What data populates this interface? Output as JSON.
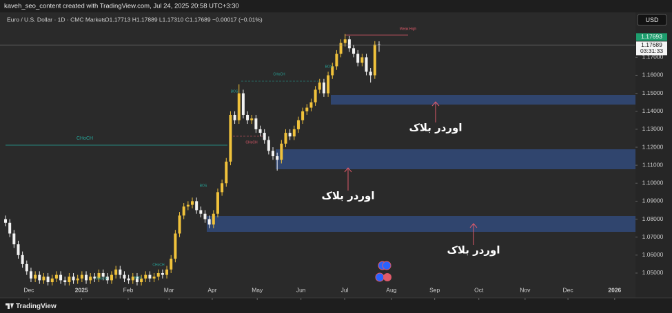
{
  "header": {
    "author_line": "kaveh_seo_content created with TradingView.com, Jul 24, 2025 20:58 UTC+3:30",
    "symbol": "Euro / U.S. Dollar · 1D · CMC Markets",
    "ohlc": "O1.17713 H1.17889 L1.17310 C1.17689 −0.00017 (−0.01%)",
    "currency": "USD",
    "brand": "TradingView"
  },
  "chart_data": {
    "type": "candlestick",
    "open": [
      1.08,
      1.078,
      1.072,
      1.066,
      1.06,
      1.055,
      1.051,
      1.047,
      1.049,
      1.046,
      1.048,
      1.045,
      1.047,
      1.049,
      1.046,
      1.045,
      1.048,
      1.046,
      1.047,
      1.049,
      1.046,
      1.048,
      1.047,
      1.05,
      1.048,
      1.046,
      1.049,
      1.052,
      1.049,
      1.047,
      1.046,
      1.048,
      1.045,
      1.047,
      1.049,
      1.047,
      1.048,
      1.05,
      1.049,
      1.052,
      1.058,
      1.072,
      1.082,
      1.087,
      1.088,
      1.09,
      1.085,
      1.083,
      1.08,
      1.077,
      1.083,
      1.095,
      1.1,
      1.112,
      1.138,
      1.135,
      1.15,
      1.138,
      1.135,
      1.136,
      1.13,
      1.128,
      1.124,
      1.118,
      1.115,
      1.113,
      1.122,
      1.128,
      1.126,
      1.13,
      1.135,
      1.14,
      1.142,
      1.145,
      1.152,
      1.156,
      1.15,
      1.16,
      1.165,
      1.172,
      1.178,
      1.18,
      1.175,
      1.172,
      1.167,
      1.17,
      1.162,
      1.16,
      1.17713
    ],
    "high": [
      1.082,
      1.08,
      1.074,
      1.068,
      1.062,
      1.057,
      1.053,
      1.051,
      1.051,
      1.05,
      1.05,
      1.049,
      1.051,
      1.051,
      1.048,
      1.05,
      1.05,
      1.049,
      1.051,
      1.051,
      1.05,
      1.05,
      1.052,
      1.052,
      1.05,
      1.051,
      1.054,
      1.054,
      1.051,
      1.049,
      1.05,
      1.05,
      1.049,
      1.051,
      1.051,
      1.05,
      1.052,
      1.052,
      1.054,
      1.06,
      1.074,
      1.084,
      1.089,
      1.09,
      1.092,
      1.092,
      1.087,
      1.085,
      1.082,
      1.085,
      1.097,
      1.102,
      1.114,
      1.14,
      1.14,
      1.155,
      1.152,
      1.14,
      1.138,
      1.138,
      1.132,
      1.13,
      1.126,
      1.12,
      1.117,
      1.124,
      1.13,
      1.13,
      1.132,
      1.137,
      1.142,
      1.144,
      1.147,
      1.154,
      1.158,
      1.158,
      1.162,
      1.167,
      1.174,
      1.18,
      1.183,
      1.182,
      1.177,
      1.174,
      1.172,
      1.172,
      1.164,
      1.179,
      1.17889
    ],
    "low": [
      1.076,
      1.07,
      1.064,
      1.058,
      1.053,
      1.049,
      1.045,
      1.045,
      1.044,
      1.044,
      1.043,
      1.043,
      1.045,
      1.044,
      1.043,
      1.043,
      1.044,
      1.044,
      1.045,
      1.044,
      1.044,
      1.045,
      1.045,
      1.046,
      1.044,
      1.044,
      1.047,
      1.047,
      1.045,
      1.044,
      1.044,
      1.043,
      1.043,
      1.045,
      1.045,
      1.045,
      1.046,
      1.047,
      1.047,
      1.05,
      1.056,
      1.07,
      1.08,
      1.085,
      1.086,
      1.083,
      1.081,
      1.078,
      1.075,
      1.075,
      1.081,
      1.093,
      1.098,
      1.11,
      1.133,
      1.133,
      1.136,
      1.133,
      1.133,
      1.128,
      1.126,
      1.122,
      1.116,
      1.113,
      1.107,
      1.111,
      1.12,
      1.124,
      1.124,
      1.128,
      1.133,
      1.138,
      1.14,
      1.143,
      1.15,
      1.148,
      1.148,
      1.158,
      1.163,
      1.17,
      1.176,
      1.173,
      1.17,
      1.165,
      1.165,
      1.16,
      1.156,
      1.158,
      1.1731
    ],
    "close": [
      1.078,
      1.072,
      1.066,
      1.06,
      1.055,
      1.051,
      1.047,
      1.049,
      1.046,
      1.048,
      1.045,
      1.047,
      1.049,
      1.046,
      1.045,
      1.048,
      1.046,
      1.047,
      1.049,
      1.046,
      1.048,
      1.047,
      1.05,
      1.048,
      1.046,
      1.049,
      1.052,
      1.049,
      1.047,
      1.046,
      1.048,
      1.045,
      1.047,
      1.049,
      1.047,
      1.048,
      1.05,
      1.049,
      1.052,
      1.058,
      1.072,
      1.082,
      1.087,
      1.088,
      1.09,
      1.085,
      1.083,
      1.08,
      1.077,
      1.083,
      1.095,
      1.1,
      1.112,
      1.138,
      1.135,
      1.15,
      1.138,
      1.135,
      1.136,
      1.13,
      1.128,
      1.124,
      1.118,
      1.115,
      1.113,
      1.122,
      1.128,
      1.126,
      1.13,
      1.135,
      1.14,
      1.142,
      1.145,
      1.152,
      1.156,
      1.15,
      1.16,
      1.165,
      1.172,
      1.178,
      1.18,
      1.175,
      1.172,
      1.167,
      1.17,
      1.162,
      1.16,
      1.1771,
      1.17689
    ],
    "up_color": "#f0c23b",
    "down_color": "#f2f2f2",
    "xlim": [
      -1.3,
      148.4
    ],
    "xticks": [
      {
        "value": 5.5,
        "label": "Dec"
      },
      {
        "value": 17.9,
        "label": "2025"
      },
      {
        "value": 28.9,
        "label": "Feb"
      },
      {
        "value": 38.5,
        "label": "Mar"
      },
      {
        "value": 48.7,
        "label": "Apr"
      },
      {
        "value": 59.3,
        "label": "May"
      },
      {
        "value": 69.6,
        "label": "Jun"
      },
      {
        "value": 79.9,
        "label": "Jul"
      },
      {
        "value": 90.9,
        "label": "Aug"
      },
      {
        "value": 101.1,
        "label": "Sep"
      },
      {
        "value": 111.5,
        "label": "Oct"
      },
      {
        "value": 122.4,
        "label": "Nov"
      },
      {
        "value": 132.5,
        "label": "Dec"
      },
      {
        "value": 143.5,
        "label": "2026"
      }
    ],
    "ylim": [
      1.0431,
      1.195
    ],
    "yticks": [
      {
        "value": 1.05,
        "label": "1.05000"
      },
      {
        "value": 1.06,
        "label": "1.06000"
      },
      {
        "value": 1.07,
        "label": "1.07000"
      },
      {
        "value": 1.08,
        "label": "1.08000"
      },
      {
        "value": 1.09,
        "label": "1.09000"
      },
      {
        "value": 1.1,
        "label": "1.10000"
      },
      {
        "value": 1.11,
        "label": "1.11000"
      },
      {
        "value": 1.12,
        "label": "1.12000"
      },
      {
        "value": 1.13,
        "label": "1.13000"
      },
      {
        "value": 1.14,
        "label": "1.14000"
      },
      {
        "value": 1.15,
        "label": "1.15000"
      },
      {
        "value": 1.16,
        "label": "1.16000"
      },
      {
        "value": 1.17,
        "label": "1.17000"
      }
    ],
    "grid": false,
    "price_tags": [
      "1.17693",
      "1.17689",
      "03:31:33"
    ],
    "annotations": [
      "CHoCH",
      "CHoCH",
      "BOS",
      "CHoCH",
      "BOS",
      "CHoCH",
      "BOS",
      "CHoCH",
      "BOS",
      "Weak High"
    ],
    "zone_labels": [
      "اوردر بلاک",
      "اوردر بلاک",
      "اوردر بلاک"
    ]
  }
}
